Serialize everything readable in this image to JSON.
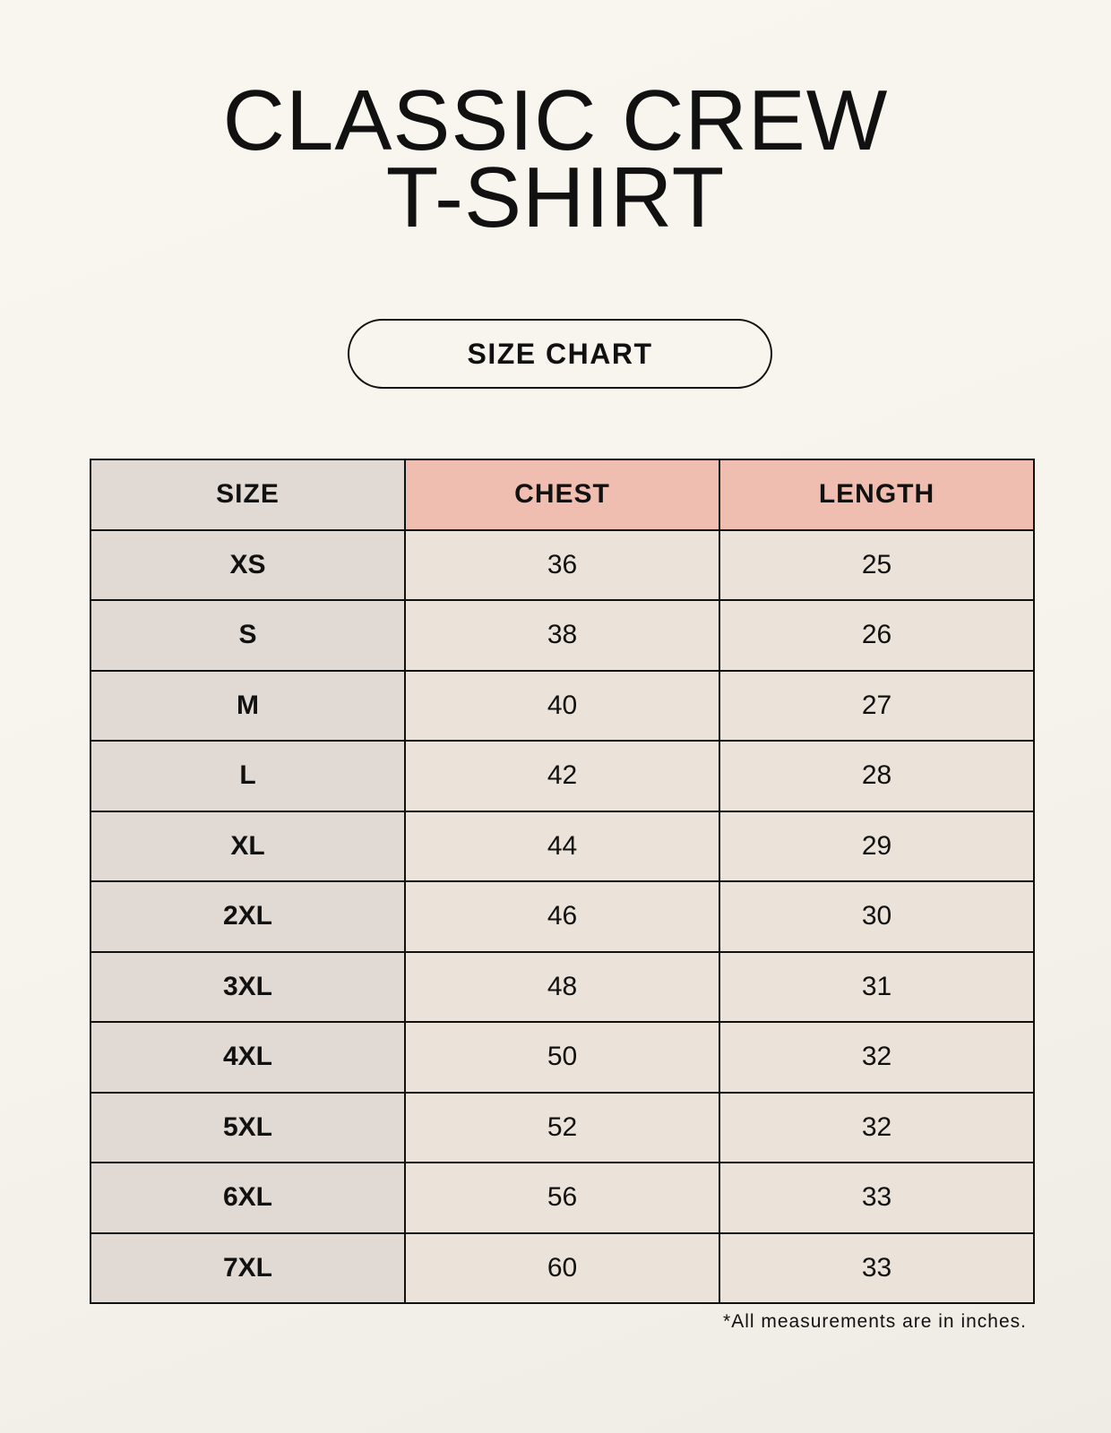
{
  "title_lines": [
    "CLASSIC CREW",
    "T-SHIRT"
  ],
  "subtitle": "SIZE CHART",
  "colors": {
    "size_column": "#e1d9d3",
    "measure_header": "#efbeb0",
    "value_cells": "#ebe3d9"
  },
  "table": {
    "headers": [
      "SIZE",
      "CHEST",
      "LENGTH"
    ],
    "rows": [
      [
        "XS",
        "36",
        "25"
      ],
      [
        "S",
        "38",
        "26"
      ],
      [
        "M",
        "40",
        "27"
      ],
      [
        "L",
        "42",
        "28"
      ],
      [
        "XL",
        "44",
        "29"
      ],
      [
        "2XL",
        "46",
        "30"
      ],
      [
        "3XL",
        "48",
        "31"
      ],
      [
        "4XL",
        "50",
        "32"
      ],
      [
        "5XL",
        "52",
        "32"
      ],
      [
        "6XL",
        "56",
        "33"
      ],
      [
        "7XL",
        "60",
        "33"
      ]
    ]
  },
  "footnote": "*All measurements are in inches."
}
